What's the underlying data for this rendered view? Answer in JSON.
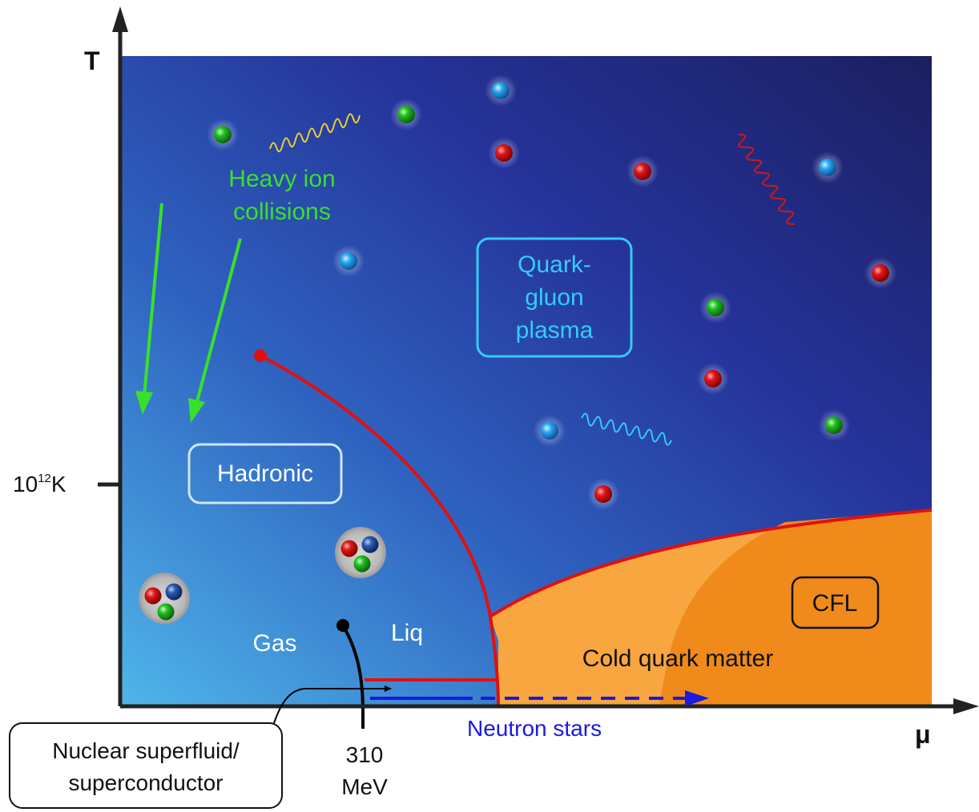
{
  "axes": {
    "y_label": "T",
    "x_label": "μ",
    "y_tick_label_base": "10",
    "y_tick_label_exp": "12",
    "y_tick_label_unit": "K",
    "x_tick_label_line1": "310",
    "x_tick_label_line2": "MeV"
  },
  "labels": {
    "heavy_ion_line1": "Heavy ion",
    "heavy_ion_line2": "collisions",
    "qgp_line1": "Quark-",
    "qgp_line2": "gluon",
    "qgp_line3": "plasma",
    "hadronic": "Hadronic",
    "gas": "Gas",
    "liq": "Liq",
    "cold_quark_matter": "Cold quark matter",
    "cfl": "CFL",
    "neutron_stars": "Neutron stars",
    "nuclear_line1": "Nuclear superfluid/",
    "nuclear_line2": "superconductor"
  },
  "colors": {
    "plasma_dark": "#1b2266",
    "plasma_mid": "#2c40a0",
    "hadron_light": "#4fb3e8",
    "cold_quark": "#f7a640",
    "cfl": "#f08a1a",
    "phase_line": "#e01010",
    "heavy_ion": "#39e02a",
    "qgp_box": "#33ccf5",
    "neutron_star": "#1a1ae0",
    "quark_red": "#e01818",
    "quark_green": "#22c022",
    "quark_blue": "#2aa8f5"
  },
  "icons": {
    "quark_particle": "colored-sphere-icon",
    "gluon": "wavy-line-icon",
    "hadron": "three-quark-cluster-icon"
  }
}
